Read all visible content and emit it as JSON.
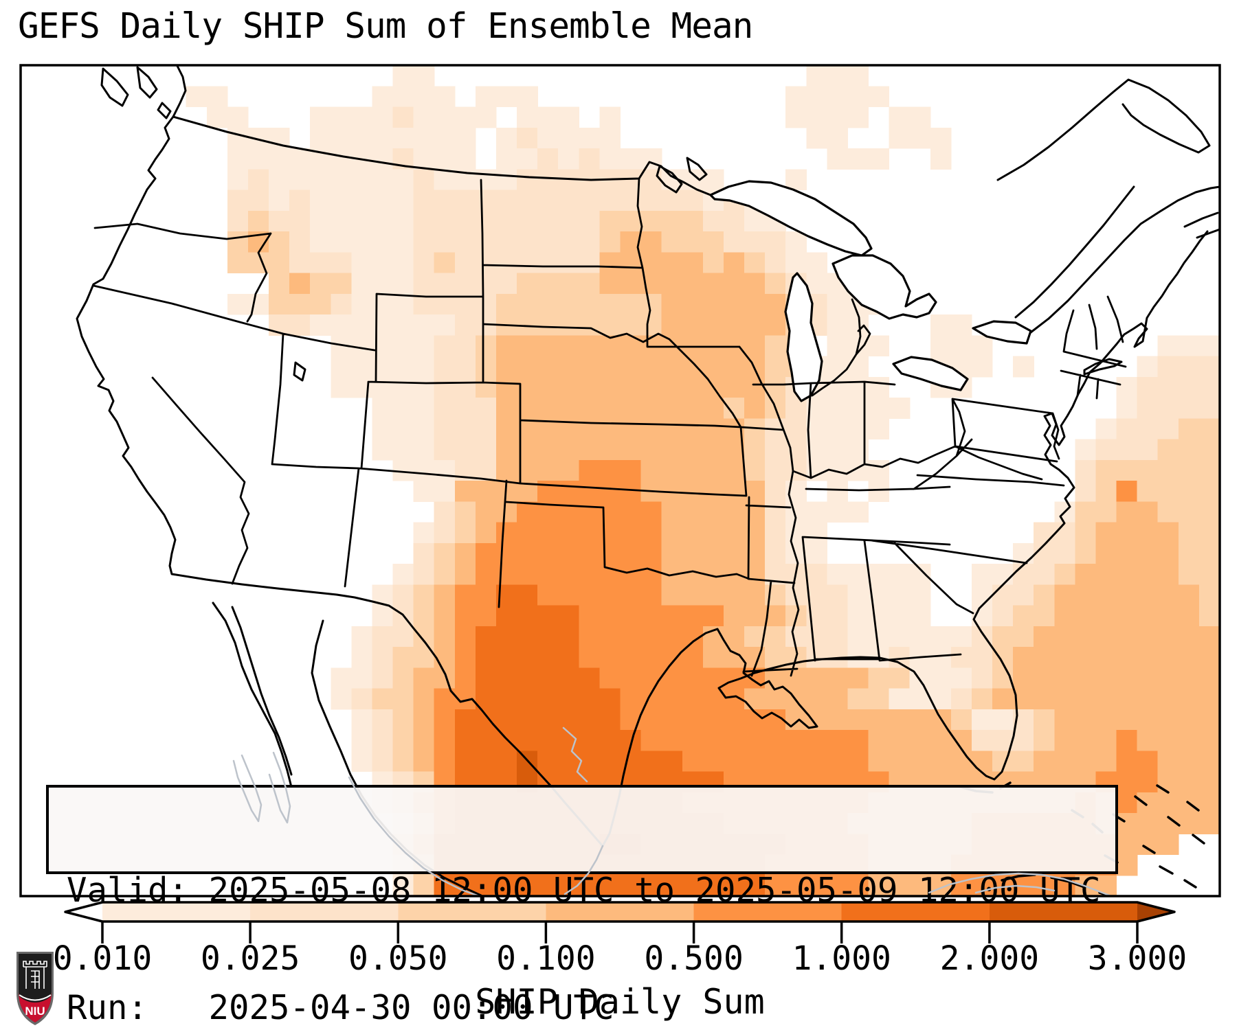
{
  "title": "GEFS Daily SHIP Sum of Ensemble Mean",
  "info_box": {
    "valid_line": "Valid: 2025-05-08 12:00 UTC to 2025-05-09 12:00 UTC",
    "run_line": "Run:   2025-04-30 00:00 UTC"
  },
  "colorbar": {
    "label": "SHIP Daily Sum",
    "tick_labels": [
      "0.010",
      "0.025",
      "0.050",
      "0.100",
      "0.500",
      "1.000",
      "2.000",
      "3.000"
    ],
    "orientation": "horizontal",
    "extend": "both"
  },
  "branding": {
    "niu": "NIU"
  },
  "map_field": {
    "description": "Daily SHIP sum of GEFS ensemble mean over CONUS; level index per grid cell",
    "cols": 58,
    "rows": 40,
    "levels": [
      "<0.010",
      "0.010-0.025",
      "0.025-0.050",
      "0.050-0.100",
      "0.100-0.500",
      "0.500-1.000",
      "1.000-2.000",
      "2.000-3.000",
      ">3.000"
    ],
    "palette": [
      "#ffffff",
      "#fdecdc",
      "#fde3ca",
      "#fdd3a9",
      "#fdba7d",
      "#fd9243",
      "#f1701b",
      "#d85c0b",
      "#a84103"
    ],
    "grid": [
      "0000000000000000001100000000000000000011100000000000000000",
      "0000000011000000011110111000000000000111110000000000000000",
      "0000000001100011112111101110100000000111101100000000000000",
      "0000000000111011111111012111100000000011001110000000000000",
      "0000000000111111112111011212111000000001110010000000000000",
      "0000000000121111111211112222222111000100000000000000000000",
      "0000000000221211111222222222222221210000000000000000000000",
      "0000000000232211111222222222333332211000000000000000000000",
      "0000000000343211111222222222344333222100000000000000000000",
      "0000000000333222111232222222444443432110000000000000000000",
      "0000000000003433111222223333444444443211100000000000000000",
      "0000000000113332111222233333333444444321110000000000000000",
      "0000000000002211111112233333333444444321100011000000000000",
      "0000000000000001111122344444444444443301110011100000000111",
      "0000000000000001111122344444444444443311100011101000001222",
      "0000000000000001111122344444444444443211110011000000012222",
      "0000000000000000011122244444444444343211111000000000012222",
      "0000000000000000011122244444444444432211110000000000122233",
      "0000000000000000011122244444444444432211100000000001222333",
      "0000000000000000001112244445554444432211110000000002333333",
      "0000000000000000000114444555554444442101010000000002353333",
      "0000000000000000000023445555555444442111100000000013344333",
      "0000000000000000000123455555555444442110000000000223444433",
      "0000000000000000000234555555555444442110000000001223444433",
      "0000000000000000001234555555555444442221111100112234444433",
      "0000000000000000012345566555555444443222111100122344444443",
      "0000000000000000012345566665555555444322111100123344444443",
      "0000000000000000122345666665555554433222111111233444444444",
      "0000000000000000123345666665555554443322112112234444444444",
      "0000000000000001123445666666555555554444433111234444444444",
      "0000000000000001233455666666655555544444331112344444444444",
      "0000000000000000123456666666655555555444444443112344444444",
      "0000000000000000123456666666665555555555544444222344454444",
      "0000000000000000123456667666666655555555544444433444455444",
      "0000000000000000012356667666666666555555554444444444555444",
      "0000000000000000012456666666666655555555544444444445454444",
      "0000000000000000001356666666666666555555444444555555444444",
      "0000000000000000002466666666776666666555544444555555544400",
      "0000000000000000001366666666666666665555544445555555540000",
      "0000000000000000001366666666666666665555544445555554400000"
    ]
  }
}
